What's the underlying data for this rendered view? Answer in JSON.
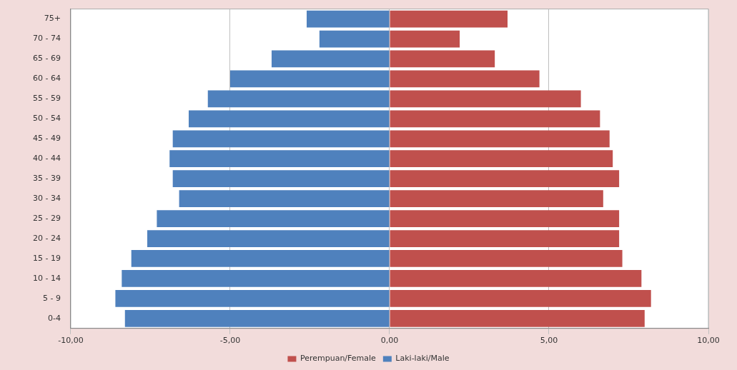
{
  "chart_data": {
    "type": "bar",
    "orientation": "horizontal",
    "stacked": true,
    "categories": [
      "75+",
      "70 - 74",
      "65 - 69",
      "60 - 64",
      "55 - 59",
      "50 - 54",
      "45 - 49",
      "40 - 44",
      "35 - 39",
      "30 - 34",
      "25 - 29",
      "20 - 24",
      "15 - 19",
      "10 - 14",
      "5 - 9",
      "0-4"
    ],
    "series": [
      {
        "name": "Perempuan/Female",
        "color": "#c0504d",
        "values": [
          3.7,
          2.2,
          3.3,
          4.7,
          6.0,
          6.6,
          6.9,
          7.0,
          7.2,
          6.7,
          7.2,
          7.2,
          7.3,
          7.9,
          8.2,
          8.0
        ]
      },
      {
        "name": "Laki-laki/Male",
        "color": "#4f81bd",
        "values": [
          -2.6,
          -2.2,
          -3.7,
          -5.0,
          -5.7,
          -6.3,
          -6.8,
          -6.9,
          -6.8,
          -6.6,
          -7.3,
          -7.6,
          -8.1,
          -8.4,
          -8.6,
          -8.3
        ]
      }
    ],
    "xlim": [
      -10,
      10
    ],
    "xticks": [
      {
        "value": -10,
        "label": "-10,00"
      },
      {
        "value": -5,
        "label": "-5,00"
      },
      {
        "value": 0,
        "label": "0,00"
      },
      {
        "value": 5,
        "label": "5,00"
      },
      {
        "value": 10,
        "label": "10,00"
      }
    ],
    "grid": "x",
    "legend": "bottom"
  }
}
